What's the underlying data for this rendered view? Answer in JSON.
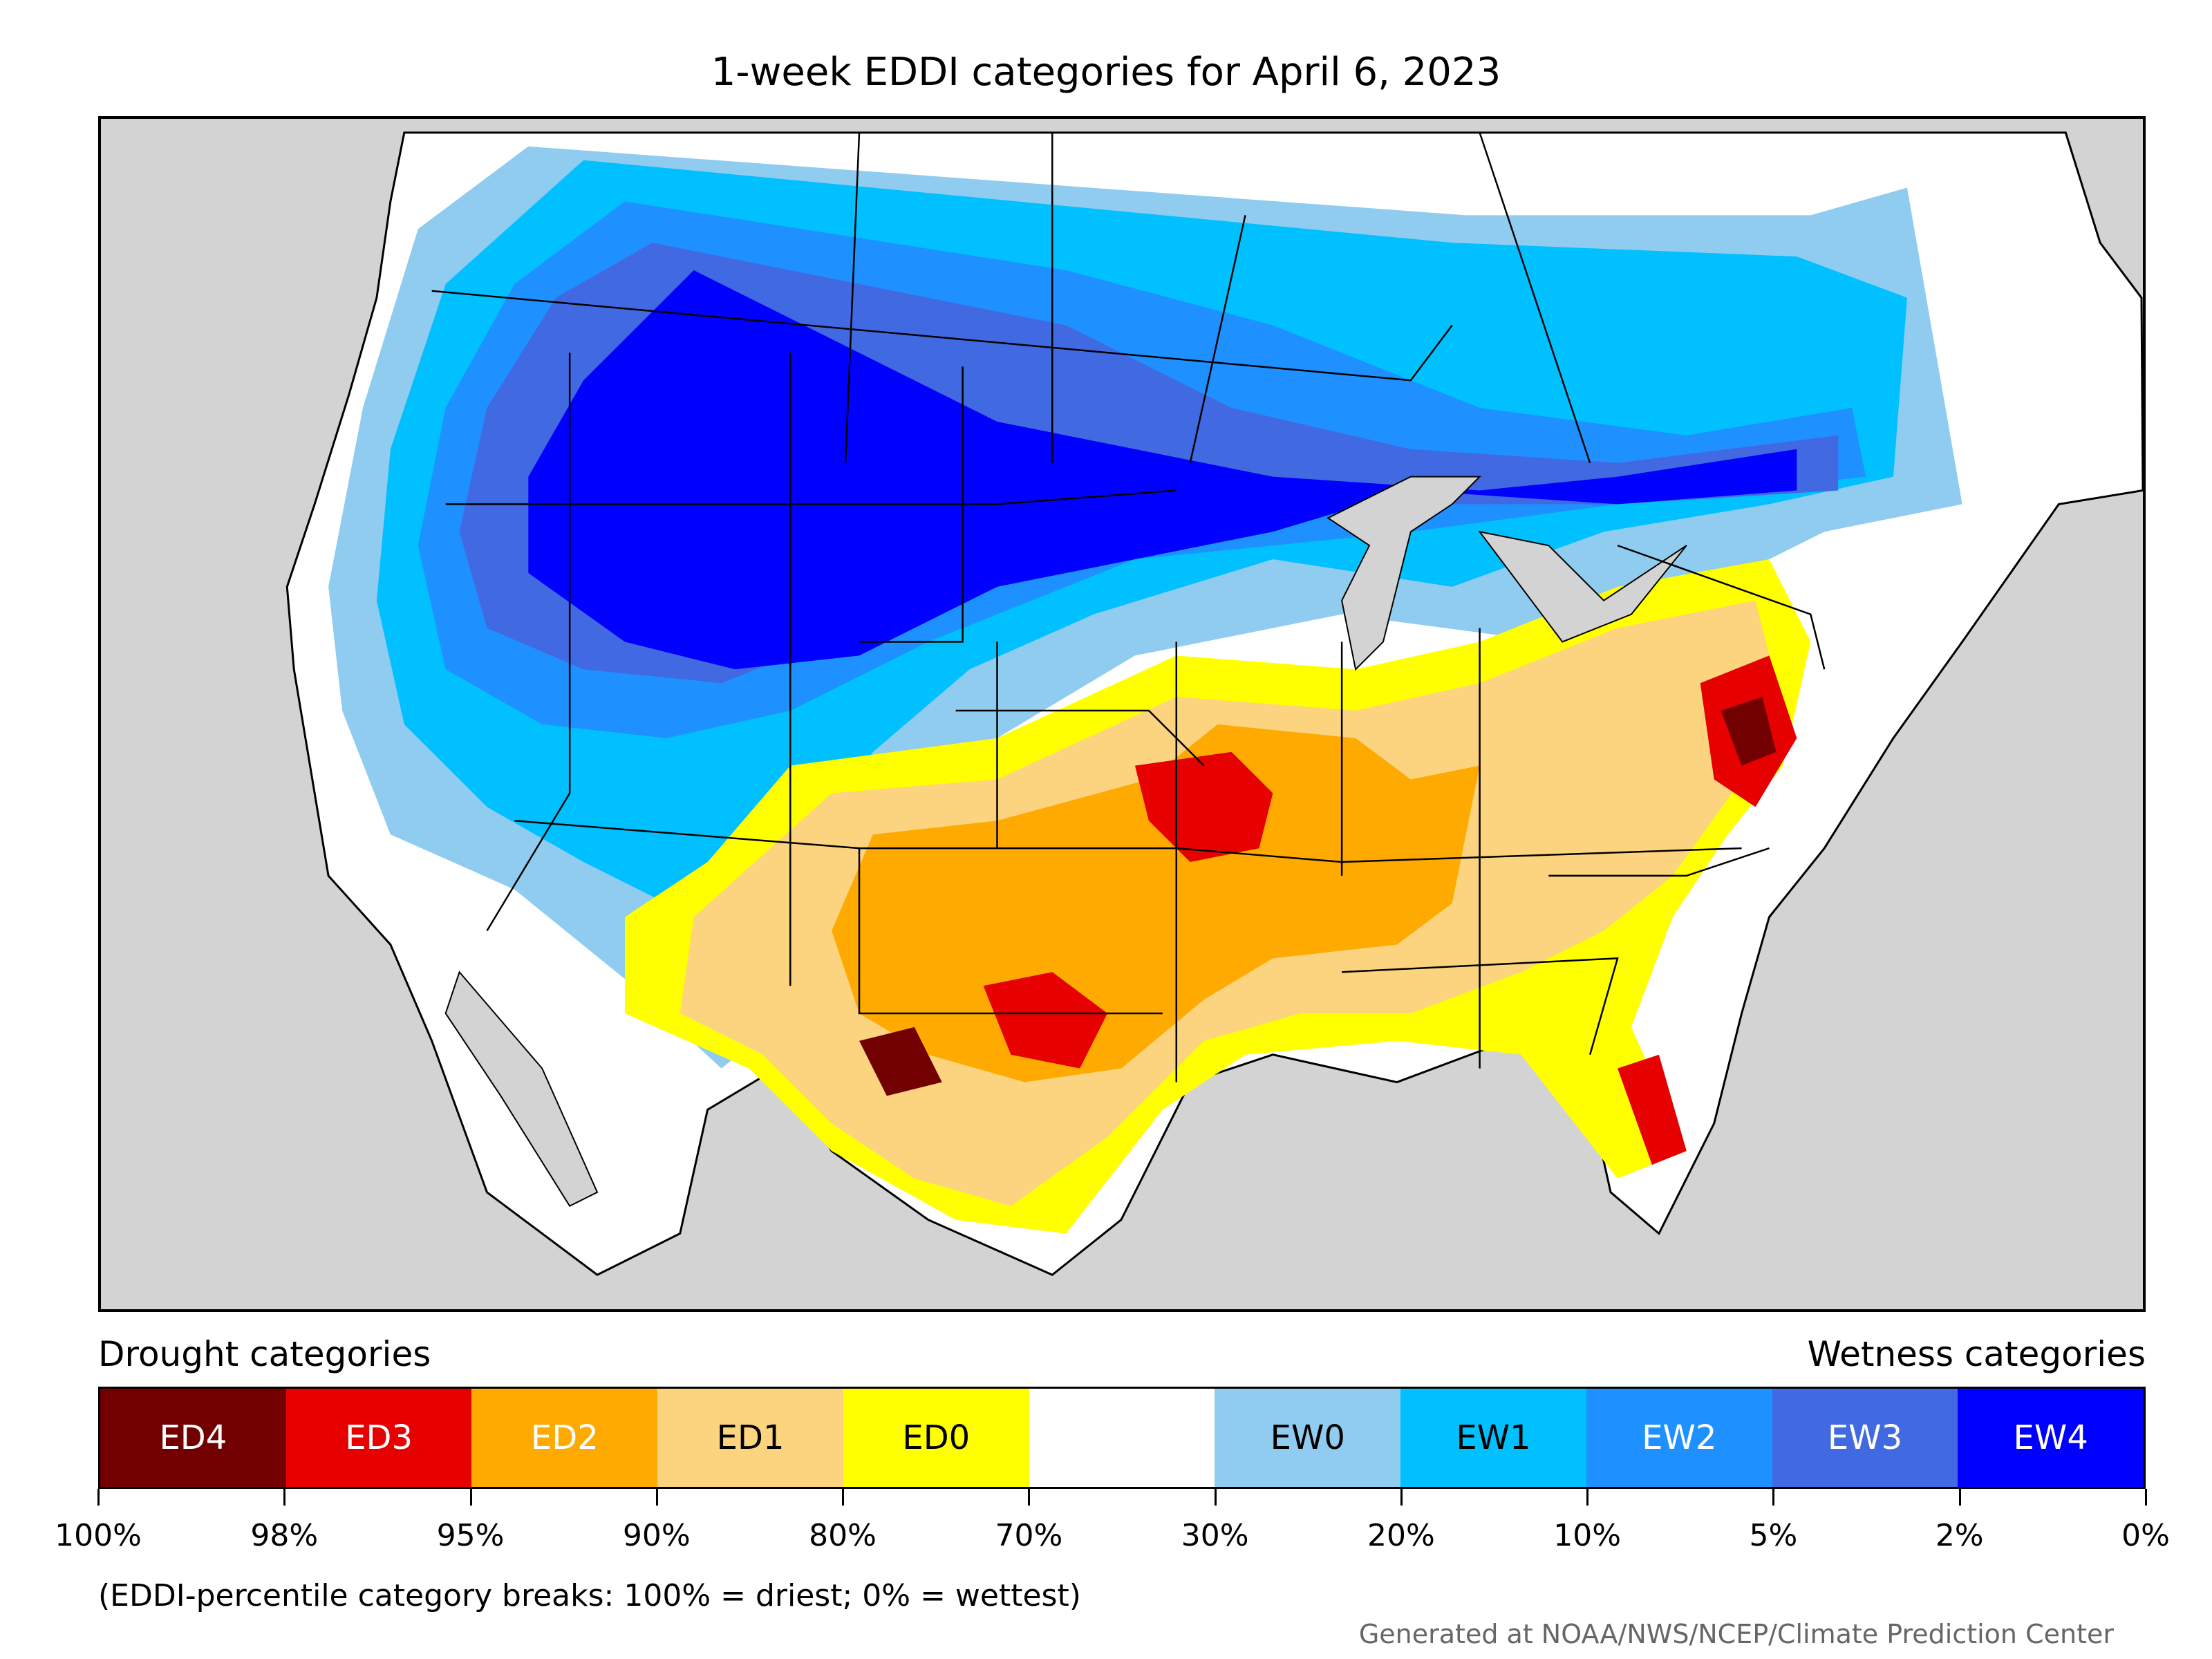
{
  "title": "1-week EDDI categories for April 6, 2023",
  "legend": {
    "drought_title": "Drought categories",
    "wetness_title": "Wetness categories",
    "categories": [
      {
        "label": "ED4",
        "color": "#730000",
        "text_color": "#ffffff"
      },
      {
        "label": "ED3",
        "color": "#e60000",
        "text_color": "#ffffff"
      },
      {
        "label": "ED2",
        "color": "#ffaa00",
        "text_color": "#ffffff"
      },
      {
        "label": "ED1",
        "color": "#fcd37f",
        "text_color": "#000000"
      },
      {
        "label": "ED0",
        "color": "#ffff00",
        "text_color": "#000000"
      },
      {
        "label": "",
        "color": "#ffffff",
        "text_color": "#000000"
      },
      {
        "label": "EW0",
        "color": "#8fccef",
        "text_color": "#000000"
      },
      {
        "label": "EW1",
        "color": "#00c0ff",
        "text_color": "#000000"
      },
      {
        "label": "EW2",
        "color": "#1e90ff",
        "text_color": "#ffffff"
      },
      {
        "label": "EW3",
        "color": "#4169e1",
        "text_color": "#ffffff"
      },
      {
        "label": "EW4",
        "color": "#0000ff",
        "text_color": "#ffffff"
      }
    ],
    "tick_labels": [
      "100%",
      "98%",
      "95%",
      "90%",
      "80%",
      "70%",
      "30%",
      "20%",
      "10%",
      "5%",
      "2%",
      "0%"
    ]
  },
  "note": "(EDDI-percentile category breaks: 100% = driest; 0% = wettest)",
  "credit": "Generated at NOAA/NWS/NCEP/Climate Prediction Center",
  "colors": {
    "ocean_background": "#d3d3d3",
    "land_nodata": "#ffffff",
    "border": "#000000"
  }
}
